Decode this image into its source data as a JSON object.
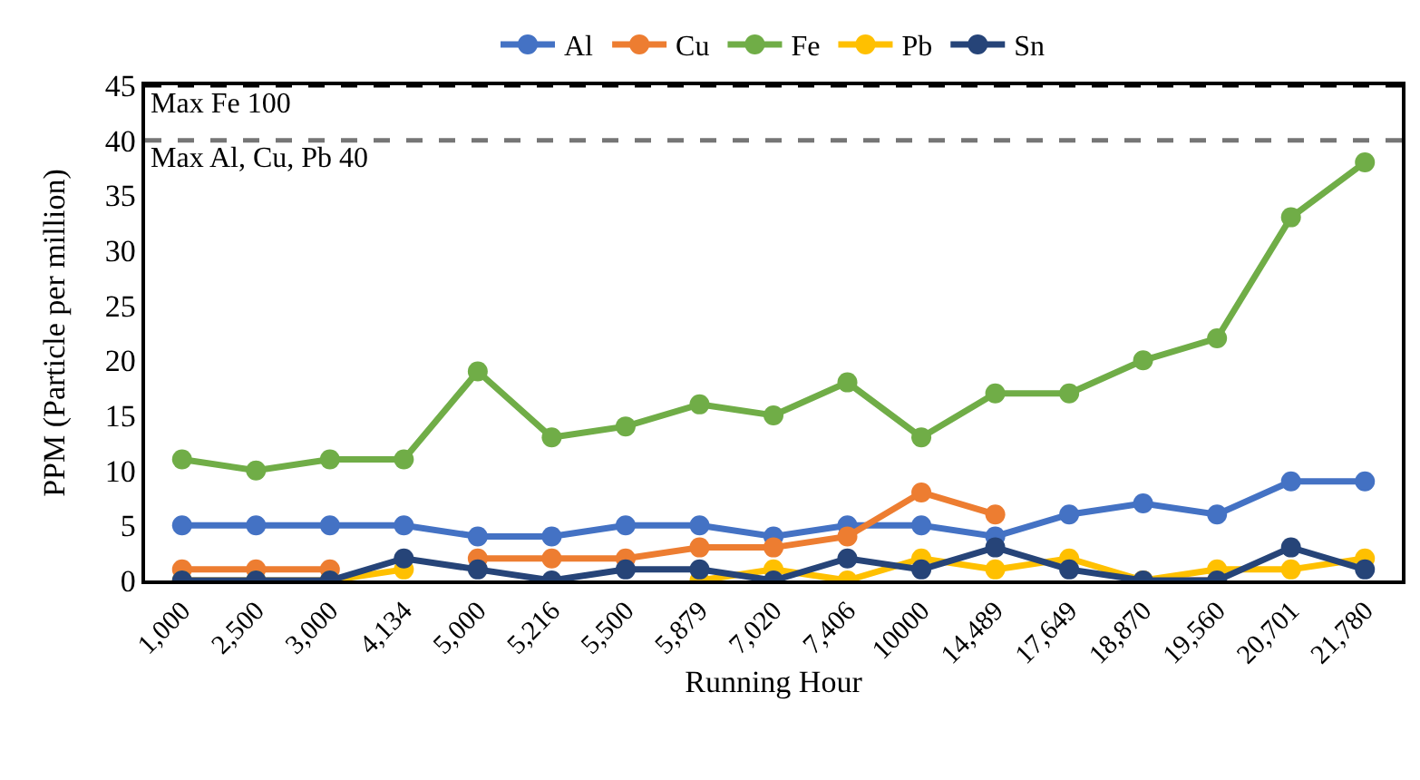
{
  "chart_data": {
    "type": "line",
    "xlabel": "Running Hour",
    "ylabel": "PPM (Particle per million)",
    "categories": [
      "1,000",
      "2,500",
      "3,000",
      "4,134",
      "5,000",
      "5,216",
      "5,500",
      "5,879",
      "7,020",
      "7,406",
      "10000",
      "14,489",
      "17,649",
      "18,870",
      "19,560",
      "20,701",
      "21,780"
    ],
    "series": [
      {
        "name": "Al",
        "color": "#4472c4",
        "values": [
          5,
          5,
          5,
          5,
          4,
          4,
          5,
          5,
          4,
          5,
          5,
          4,
          6,
          7,
          6,
          9,
          9
        ]
      },
      {
        "name": "Cu",
        "color": "#ed7d31",
        "values": [
          1,
          1,
          1,
          null,
          2,
          2,
          2,
          3,
          3,
          4,
          8,
          6,
          null,
          0,
          0,
          null,
          null
        ]
      },
      {
        "name": "Fe",
        "color": "#70ad47",
        "values": [
          11,
          10,
          11,
          11,
          19,
          13,
          14,
          16,
          15,
          18,
          13,
          17,
          17,
          20,
          22,
          33,
          38
        ]
      },
      {
        "name": "Pb",
        "color": "#ffc000",
        "values": [
          0,
          0,
          0,
          1,
          null,
          null,
          null,
          0,
          1,
          0,
          2,
          1,
          2,
          0,
          1,
          1,
          2
        ]
      },
      {
        "name": "Sn",
        "color": "#264478",
        "values": [
          0,
          0,
          0,
          2,
          1,
          0,
          1,
          1,
          0,
          2,
          1,
          3,
          1,
          0,
          0,
          3,
          1
        ]
      }
    ],
    "ylim": [
      0,
      45
    ],
    "yticks": [
      0,
      5,
      10,
      15,
      20,
      25,
      30,
      35,
      40,
      45
    ],
    "ref_lines": [
      {
        "axis": "y",
        "value": 45,
        "label": "Max Fe 100",
        "color": "#000000",
        "line_style": "dashed"
      },
      {
        "axis": "y",
        "value": 40,
        "label": "Max Al, Cu, Pb 40",
        "color": "#767676",
        "line_style": "dashed"
      }
    ],
    "grid": false,
    "legend": "top",
    "marker": "circle",
    "line_style": "solid"
  }
}
